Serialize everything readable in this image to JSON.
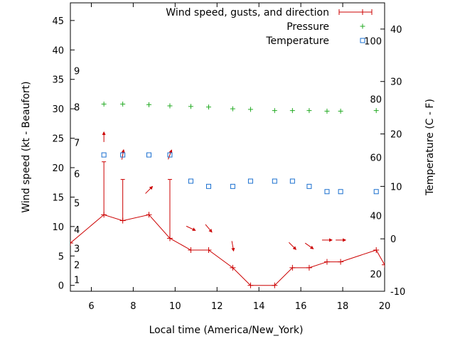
{
  "chart_data": {
    "type": "line",
    "xlabel": "Local time (America/New_York)",
    "ylabel_left": "Wind speed (kt - Beaufort)",
    "ylabel_right": "Temperature (C - F)",
    "xlim": [
      5,
      20
    ],
    "ylim_left": [
      -1,
      48
    ],
    "ylim_right": [
      -10,
      45
    ],
    "xticks": [
      6,
      8,
      10,
      12,
      14,
      16,
      18,
      20
    ],
    "yticks_left": [
      0,
      5,
      10,
      15,
      20,
      25,
      30,
      35,
      40,
      45
    ],
    "yticks_right": [
      -10,
      0,
      10,
      20,
      30,
      40
    ],
    "fahrenheit_labels": [
      20,
      40,
      60,
      80,
      100
    ],
    "beaufort_labels": [
      {
        "label": "1",
        "kt": 1
      },
      {
        "label": "2",
        "kt": 3.5
      },
      {
        "label": "3",
        "kt": 6.3
      },
      {
        "label": "4",
        "kt": 9.5
      },
      {
        "label": "5",
        "kt": 14
      },
      {
        "label": "6",
        "kt": 19
      },
      {
        "label": "7",
        "kt": 24.3
      },
      {
        "label": "8",
        "kt": 30.3
      },
      {
        "label": "9",
        "kt": 36.5
      }
    ],
    "legend": {
      "position": "top-right",
      "entries": [
        "Wind speed, gusts, and direction",
        "Pressure",
        "Temperature"
      ]
    },
    "colors": {
      "wind": "#cc0000",
      "pressure": "#22aa22",
      "temperature": "#1a6fcf"
    },
    "series": [
      {
        "name": "Wind speed, gusts, and direction",
        "axis": "left",
        "x": [
          5,
          6.6,
          7.5,
          8.75,
          9.75,
          10.75,
          11.6,
          12.75,
          13.6,
          14.75,
          15.6,
          16.4,
          17.25,
          17.9,
          19.6,
          20
        ],
        "values": [
          7.2,
          12,
          11,
          12,
          8,
          6,
          6,
          3,
          0,
          0,
          3,
          3,
          4,
          4,
          6,
          3.5
        ],
        "gusts": [
          {
            "x": 6.6,
            "speed": 12,
            "gust": 21
          },
          {
            "x": 7.5,
            "speed": 11,
            "gust": 18
          },
          {
            "x": 9.75,
            "speed": 8,
            "gust": 18
          }
        ]
      },
      {
        "name": "Wind direction",
        "axis": "left",
        "arrows": [
          {
            "x": 6.6,
            "y": 25.2,
            "dir_deg": 90
          },
          {
            "x": 7.5,
            "y": 22.2,
            "dir_deg": 80
          },
          {
            "x": 8.75,
            "y": 16.2,
            "dir_deg": 45
          },
          {
            "x": 9.75,
            "y": 22.2,
            "dir_deg": 70
          },
          {
            "x": 10.75,
            "y": 9.7,
            "dir_deg": -25
          },
          {
            "x": 11.6,
            "y": 9.7,
            "dir_deg": -50
          },
          {
            "x": 12.75,
            "y": 6.7,
            "dir_deg": -80
          },
          {
            "x": 15.6,
            "y": 6.7,
            "dir_deg": -45
          },
          {
            "x": 16.4,
            "y": 6.7,
            "dir_deg": -35
          },
          {
            "x": 17.25,
            "y": 7.7,
            "dir_deg": 0
          },
          {
            "x": 17.9,
            "y": 7.7,
            "dir_deg": 0
          }
        ]
      },
      {
        "name": "Pressure",
        "axis": "left",
        "x": [
          6.6,
          7.5,
          8.75,
          9.75,
          10.75,
          11.6,
          12.75,
          13.6,
          14.75,
          15.6,
          16.4,
          17.25,
          17.9,
          19.6
        ],
        "values": [
          30.8,
          30.8,
          30.7,
          30.5,
          30.4,
          30.3,
          30.0,
          29.9,
          29.7,
          29.7,
          29.7,
          29.6,
          29.6,
          29.7
        ]
      },
      {
        "name": "Temperature",
        "axis": "right",
        "x": [
          6.6,
          7.5,
          8.75,
          9.75,
          10.75,
          11.6,
          12.75,
          13.6,
          14.75,
          15.6,
          16.4,
          17.25,
          17.9,
          19.6
        ],
        "values": [
          16,
          16,
          16,
          16,
          11,
          10,
          10,
          11,
          11,
          11,
          10,
          9,
          9,
          9
        ]
      }
    ]
  }
}
